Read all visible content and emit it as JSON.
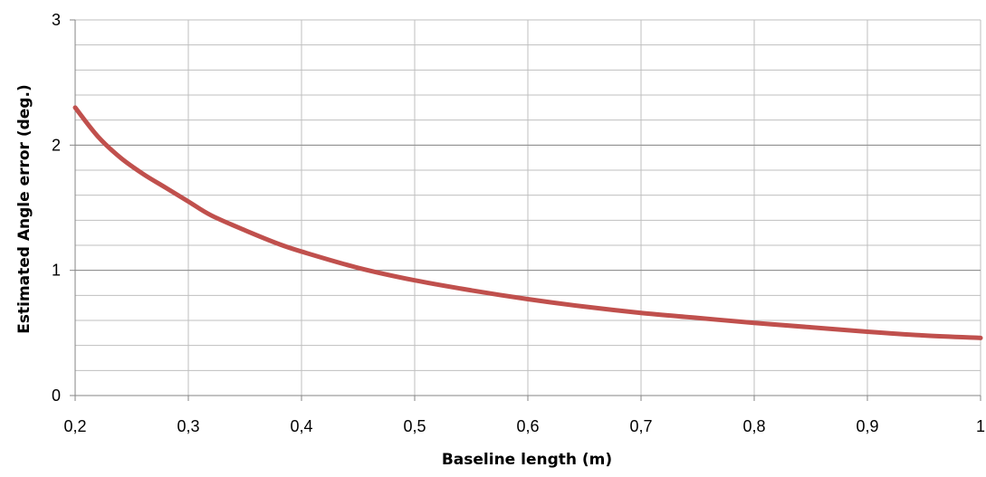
{
  "chart_data": {
    "type": "line",
    "title": "",
    "xlabel": "Baseline length (m)",
    "ylabel": "Estimated Angle error (deg.)",
    "xlim": [
      0.2,
      1.0
    ],
    "ylim": [
      0,
      3
    ],
    "x_ticks": [
      "0,2",
      "0,3",
      "0,4",
      "0,5",
      "0,6",
      "0,7",
      "0,8",
      "0,9",
      "1"
    ],
    "y_ticks": [
      "0",
      "1",
      "2",
      "3"
    ],
    "major_x_gridlines": true,
    "y_gridline_step": 0.2,
    "legend": "none",
    "series": [
      {
        "color": "#c0504d",
        "x": [
          0.2,
          0.22,
          0.24,
          0.26,
          0.28,
          0.3,
          0.32,
          0.35,
          0.38,
          0.4,
          0.45,
          0.5,
          0.55,
          0.6,
          0.65,
          0.7,
          0.75,
          0.8,
          0.85,
          0.9,
          0.95,
          1.0
        ],
        "y": [
          2.3,
          2.07,
          1.9,
          1.77,
          1.66,
          1.55,
          1.44,
          1.32,
          1.21,
          1.15,
          1.02,
          0.92,
          0.84,
          0.77,
          0.71,
          0.66,
          0.62,
          0.58,
          0.545,
          0.51,
          0.48,
          0.46
        ]
      }
    ]
  }
}
